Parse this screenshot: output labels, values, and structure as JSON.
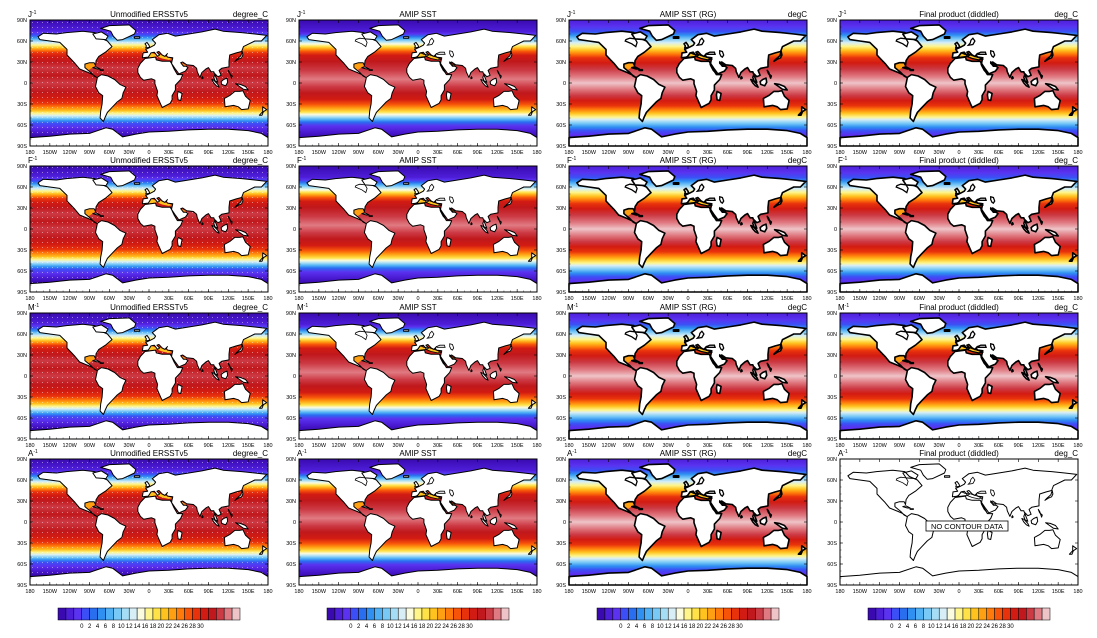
{
  "columns": [
    {
      "title": "Unmodified ERSSTv5",
      "units": "degree_C",
      "render": "ersst"
    },
    {
      "title": "AMIP SST",
      "units": "",
      "render": "amip"
    },
    {
      "title": "AMIP SST (RG)",
      "units": "degC",
      "render": "rg"
    },
    {
      "title": "Final product (diddled)",
      "units": "deg_C",
      "render": "final"
    }
  ],
  "rows": [
    {
      "label": "J",
      "superscript": "-1"
    },
    {
      "label": "F",
      "superscript": "-1"
    },
    {
      "label": "M",
      "superscript": "-1"
    },
    {
      "label": "A",
      "superscript": "-1"
    }
  ],
  "empty_panel": {
    "row": 3,
    "col": 3,
    "message": "NO CONTOUR DATA"
  },
  "lat_ticks": [
    "90N",
    "60N",
    "30N",
    "0",
    "30S",
    "60S",
    "90S"
  ],
  "lon_ticks": [
    "180",
    "150W",
    "120W",
    "90W",
    "60W",
    "30W",
    "0",
    "30E",
    "60E",
    "90E",
    "120E",
    "150E",
    "180"
  ],
  "colorbar": {
    "labels": [
      "0",
      "2",
      "4",
      "6",
      "8",
      "10",
      "12",
      "14",
      "16",
      "18",
      "20",
      "22",
      "24",
      "26",
      "28",
      "30"
    ],
    "colors": [
      "#3a0ab0",
      "#4d1ed8",
      "#5a32f0",
      "#3c4ef5",
      "#2a6ef0",
      "#2f90f2",
      "#4fb0f5",
      "#79c9f7",
      "#a6ddf6",
      "#d7eef6",
      "#fbfbe0",
      "#fff58a",
      "#ffe248",
      "#ffc21f",
      "#ff9f12",
      "#ff7a0a",
      "#f7540a",
      "#e8320c",
      "#d21b12",
      "#c0181c",
      "#cc3a44",
      "#e07a82",
      "#eec4c8"
    ]
  },
  "colors": {
    "background": "#ffffff",
    "land": "#ffffff",
    "coast": "#000000",
    "dot_grid": "#ffffff"
  }
}
